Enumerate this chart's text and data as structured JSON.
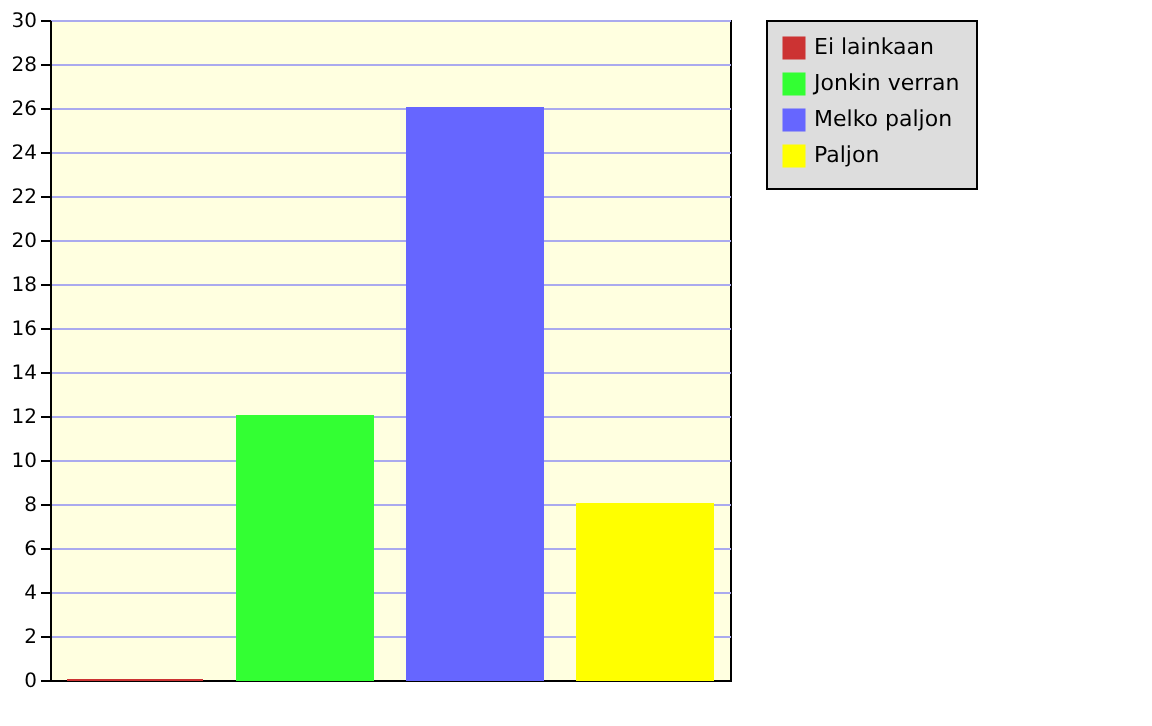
{
  "chart_data": {
    "type": "bar",
    "categories": [
      null,
      null,
      null,
      null
    ],
    "series": [
      {
        "name": "Ei lainkaan",
        "color": "#cc3333",
        "values": [
          0,
          null,
          null,
          null
        ]
      },
      {
        "name": "Jonkin verran",
        "color": "#33ff33",
        "values": [
          null,
          12,
          null,
          null
        ]
      },
      {
        "name": "Melko paljon",
        "color": "#6666ff",
        "values": [
          null,
          null,
          26,
          null
        ]
      },
      {
        "name": "Paljon",
        "color": "#ffff00",
        "values": [
          null,
          null,
          null,
          8
        ]
      }
    ],
    "ylim": [
      0,
      30
    ],
    "yticks": [
      0,
      2,
      4,
      6,
      8,
      10,
      12,
      14,
      16,
      18,
      20,
      22,
      24,
      26,
      28,
      30
    ],
    "grid": "y",
    "legend": "top right"
  }
}
